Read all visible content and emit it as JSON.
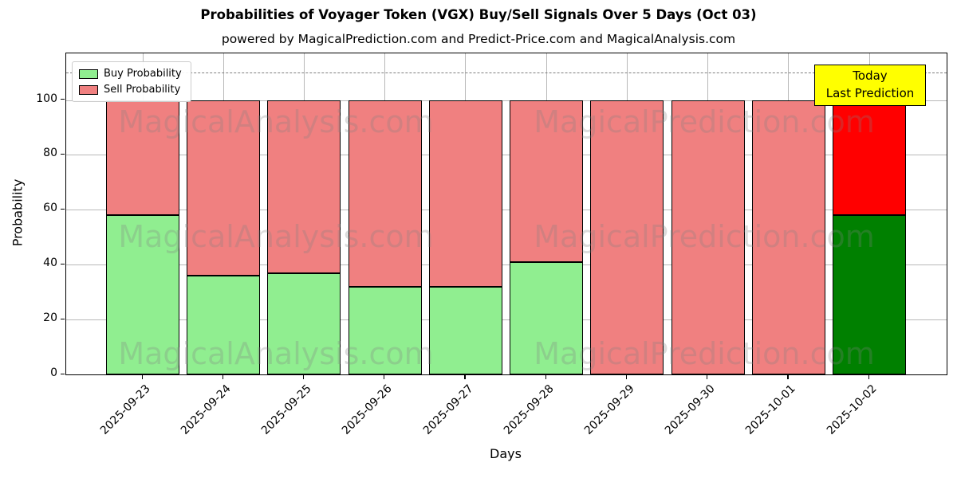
{
  "title": "Probabilities of Voyager Token (VGX) Buy/Sell Signals Over 5 Days (Oct 03)",
  "subtitle": "powered by MagicalPrediction.com and Predict-Price.com and MagicalAnalysis.com",
  "legend": {
    "items": [
      {
        "label": "Buy Probability",
        "color": "#90ee90"
      },
      {
        "label": "Sell Probability",
        "color": "#f08080"
      }
    ]
  },
  "annotation": {
    "line1": "Today",
    "line2": "Last Prediction",
    "bg_color": "#ffff00"
  },
  "watermarks": {
    "left_text": "MagicalAnalysis.com",
    "right_text": "MagicalPrediction.com"
  },
  "colors": {
    "buy": "#90ee90",
    "sell": "#f08080",
    "today_buy": "#008000",
    "today_sell": "#ff0000",
    "grid": "#b8b8b8",
    "dashed_line": "#7f7f7f"
  },
  "chart_data": {
    "type": "bar",
    "stacked": true,
    "title": "Probabilities of Voyager Token (VGX) Buy/Sell Signals Over 5 Days (Oct 03)",
    "xlabel": "Days",
    "ylabel": "Probability",
    "categories": [
      "2025-09-23",
      "2025-09-24",
      "2025-09-25",
      "2025-09-26",
      "2025-09-27",
      "2025-09-28",
      "2025-09-29",
      "2025-09-30",
      "2025-10-01",
      "2025-10-02"
    ],
    "series": [
      {
        "name": "Buy Probability",
        "color": "#90ee90",
        "values": [
          58,
          36,
          37,
          32,
          32,
          41,
          0,
          0,
          0,
          58
        ]
      },
      {
        "name": "Sell Probability",
        "color": "#f08080",
        "values": [
          42,
          64,
          63,
          68,
          68,
          59,
          100,
          100,
          100,
          42
        ]
      }
    ],
    "today_bar": {
      "index": 9,
      "buy_color": "#008000",
      "sell_color": "#ff0000",
      "label": "Today\nLast Prediction"
    },
    "yticks": [
      0,
      20,
      40,
      60,
      80,
      100
    ],
    "ylim": [
      0,
      117
    ],
    "dashed_line_y": 110,
    "grid": true,
    "legend_position": "upper left"
  }
}
